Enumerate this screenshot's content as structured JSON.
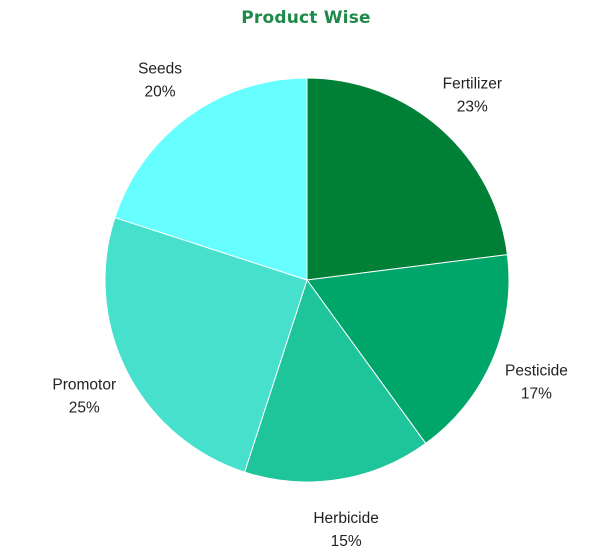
{
  "chart_data": {
    "type": "pie",
    "title": "Product Wise",
    "title_color": "#1e8a4a",
    "start_angle_deg": 0,
    "direction": "clockwise",
    "slices": [
      {
        "label": "Fertilizer",
        "value": 23,
        "value_label": "23%",
        "color": "#007f37"
      },
      {
        "label": "Pesticide",
        "value": 17,
        "value_label": "17%",
        "color": "#00a56a"
      },
      {
        "label": "Herbicide",
        "value": 15,
        "value_label": "15%",
        "color": "#1ec49a"
      },
      {
        "label": "Promotor",
        "value": 25,
        "value_label": "25%",
        "color": "#46e0cc"
      },
      {
        "label": "Seeds",
        "value": 20,
        "value_label": "20%",
        "color": "#66feff"
      }
    ]
  }
}
